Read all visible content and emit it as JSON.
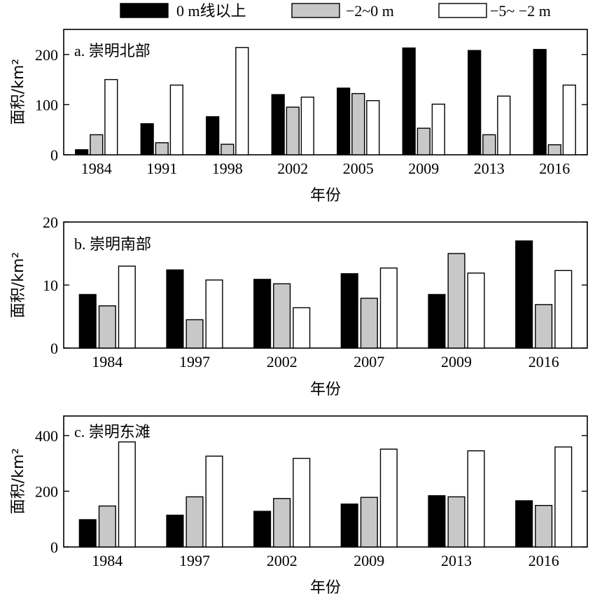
{
  "legend": [
    {
      "label": "0 m线以上",
      "color": "#000000"
    },
    {
      "label": "−2~0 m",
      "color": "#c8c8c8"
    },
    {
      "label": "−5~ −2 m",
      "color": "#ffffff"
    }
  ],
  "chart_data": [
    {
      "type": "bar",
      "title": "a. 崇明北部",
      "xlabel": "年份",
      "ylabel": "面积/km²",
      "ylim": [
        0,
        250
      ],
      "yticks": [
        0,
        100,
        200
      ],
      "categories": [
        "1984",
        "1991",
        "1998",
        "2002",
        "2005",
        "2009",
        "2013",
        "2016"
      ],
      "series": [
        {
          "name": "0 m线以上",
          "values": [
            10,
            62,
            76,
            120,
            133,
            213,
            208,
            210
          ]
        },
        {
          "name": "−2~0 m",
          "values": [
            40,
            24,
            21,
            95,
            122,
            53,
            40,
            20
          ]
        },
        {
          "name": "−5~ −2 m",
          "values": [
            150,
            139,
            214,
            115,
            108,
            101,
            117,
            139
          ]
        }
      ]
    },
    {
      "type": "bar",
      "title": "b. 崇明南部",
      "xlabel": "年份",
      "ylabel": "面积/km²",
      "ylim": [
        0,
        20
      ],
      "yticks": [
        0,
        10,
        20
      ],
      "categories": [
        "1984",
        "1997",
        "2002",
        "2007",
        "2009",
        "2016"
      ],
      "series": [
        {
          "name": "0 m线以上",
          "values": [
            8.5,
            12.4,
            10.9,
            11.8,
            8.5,
            17.0
          ]
        },
        {
          "name": "−2~0 m",
          "values": [
            6.7,
            4.5,
            10.2,
            7.9,
            15.0,
            6.9
          ]
        },
        {
          "name": "−5~ −2 m",
          "values": [
            13.0,
            10.8,
            6.4,
            12.7,
            11.9,
            12.3
          ]
        }
      ]
    },
    {
      "type": "bar",
      "title": "c. 崇明东滩",
      "xlabel": "年份",
      "ylabel": "面积/km²",
      "ylim": [
        0,
        470
      ],
      "yticks": [
        0,
        200,
        400
      ],
      "categories": [
        "1984",
        "1997",
        "2002",
        "2009",
        "2013",
        "2016"
      ],
      "series": [
        {
          "name": "0 m线以上",
          "values": [
            98,
            114,
            128,
            154,
            184,
            166
          ]
        },
        {
          "name": "−2~0 m",
          "values": [
            147,
            180,
            174,
            178,
            180,
            149
          ]
        },
        {
          "name": "−5~ −2 m",
          "values": [
            377,
            326,
            318,
            351,
            345,
            359
          ]
        }
      ]
    }
  ]
}
